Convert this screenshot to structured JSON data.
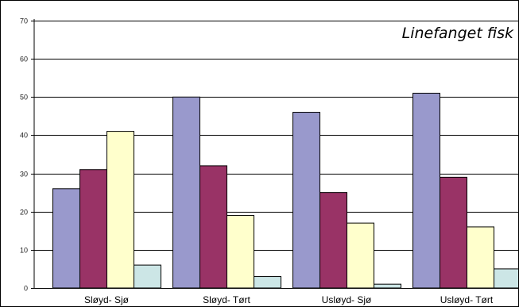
{
  "chart_data": {
    "type": "bar",
    "title": "Linefanget fisk",
    "xlabel": "",
    "ylabel": "",
    "categories": [
      "Sløyd- Sjø",
      "Sløyd- Tørt",
      "Usløyd- Sjø",
      "Usløyd- Tørt"
    ],
    "series": [
      {
        "values": [
          26,
          50,
          46,
          51
        ],
        "color": "#9999cc"
      },
      {
        "values": [
          31,
          32,
          25,
          29
        ],
        "color": "#993366"
      },
      {
        "values": [
          41,
          19,
          17,
          16
        ],
        "color": "#ffffcc"
      },
      {
        "values": [
          6,
          3,
          1,
          5
        ],
        "color": "#cce6e6"
      }
    ],
    "ylim": [
      0,
      70
    ],
    "yticks": [
      0,
      10,
      20,
      30,
      40,
      50,
      60,
      70
    ],
    "grid": true,
    "legend": "none"
  }
}
